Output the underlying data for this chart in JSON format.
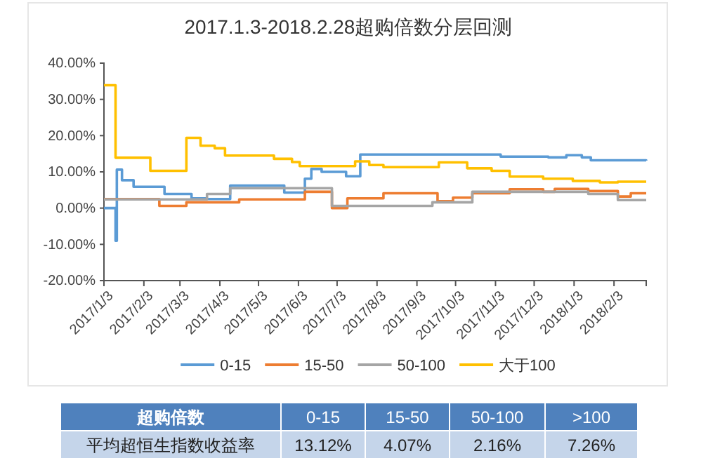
{
  "chart_data": [
    {
      "type": "step",
      "title": "2017.1.3-2018.2.28超购倍数分层回测",
      "xlim": [
        "2017-01-03",
        "2018-02-28"
      ],
      "xticks": [
        {
          "value": "2017-01-03",
          "label": "2017/1/3"
        },
        {
          "value": "2017-02-03",
          "label": "2017/2/3"
        },
        {
          "value": "2017-03-03",
          "label": "2017/3/3"
        },
        {
          "value": "2017-04-03",
          "label": "2017/4/3"
        },
        {
          "value": "2017-05-03",
          "label": "2017/5/3"
        },
        {
          "value": "2017-06-03",
          "label": "2017/6/3"
        },
        {
          "value": "2017-07-03",
          "label": "2017/7/3"
        },
        {
          "value": "2017-08-03",
          "label": "2017/8/3"
        },
        {
          "value": "2017-09-03",
          "label": "2017/9/3"
        },
        {
          "value": "2017-10-03",
          "label": "2017/10/3"
        },
        {
          "value": "2017-11-03",
          "label": "2017/11/3"
        },
        {
          "value": "2017-12-03",
          "label": "2017/12/3"
        },
        {
          "value": "2018-01-03",
          "label": "2018/1/3"
        },
        {
          "value": "2018-02-03",
          "label": "2018/2/3"
        }
      ],
      "ylim": [
        -20,
        40
      ],
      "yticks": [
        {
          "value": -20,
          "label": "-20.00%"
        },
        {
          "value": -10,
          "label": "-10.00%"
        },
        {
          "value": 0,
          "label": "0.00%"
        },
        {
          "value": 10,
          "label": "10.00%"
        },
        {
          "value": 20,
          "label": "20.00%"
        },
        {
          "value": 30,
          "label": "30.00%"
        },
        {
          "value": 40,
          "label": "40.00%"
        }
      ],
      "legend": "bottom",
      "marker": "none",
      "line_style": "solid",
      "series": [
        {
          "name": "0-15",
          "color": "#5b9bd5",
          "x": [
            "2017-01-03",
            "2017-01-12",
            "2017-01-13",
            "2017-01-17",
            "2017-01-26",
            "2017-02-19",
            "2017-03-12",
            "2017-03-24",
            "2017-04-11",
            "2017-05-23",
            "2017-06-08",
            "2017-06-13",
            "2017-06-21",
            "2017-07-10",
            "2017-07-21",
            "2017-11-07",
            "2017-12-14",
            "2017-12-28",
            "2018-01-09",
            "2018-01-16",
            "2018-02-28"
          ],
          "values": [
            0,
            -9,
            10.6,
            7.7,
            5.9,
            3.9,
            2.7,
            2.5,
            6.2,
            4.3,
            8.1,
            10.8,
            10.0,
            8.8,
            14.8,
            14.2,
            14.0,
            14.6,
            14.0,
            13.2,
            13.1
          ]
        },
        {
          "name": "15-50",
          "color": "#ed7d31",
          "x": [
            "2017-01-03",
            "2017-02-15",
            "2017-03-08",
            "2017-04-18",
            "2017-06-08",
            "2017-06-29",
            "2017-07-11",
            "2017-08-08",
            "2017-09-19",
            "2017-10-01",
            "2017-10-16",
            "2017-11-14",
            "2017-12-10",
            "2017-12-19",
            "2018-01-14",
            "2018-02-06",
            "2018-02-16",
            "2018-02-28"
          ],
          "values": [
            2.5,
            0.6,
            1.6,
            2.4,
            4.5,
            0.0,
            2.7,
            4.1,
            1.9,
            2.9,
            4.1,
            5.2,
            4.5,
            5.3,
            4.7,
            3.2,
            4.1,
            4.1
          ]
        },
        {
          "name": "50-100",
          "color": "#a5a5a5",
          "x": [
            "2017-01-03",
            "2017-03-24",
            "2017-04-11",
            "2017-06-29",
            "2017-09-15",
            "2017-10-16",
            "2018-01-14",
            "2018-02-06",
            "2018-02-28"
          ],
          "values": [
            2.4,
            3.9,
            5.5,
            0.6,
            1.6,
            4.5,
            3.9,
            2.2,
            2.2
          ]
        },
        {
          "name": "大于100",
          "color": "#ffc000",
          "x": [
            "2017-01-03",
            "2017-01-12",
            "2017-02-08",
            "2017-03-08",
            "2017-03-19",
            "2017-03-30",
            "2017-04-07",
            "2017-05-15",
            "2017-05-29",
            "2017-06-04",
            "2017-07-17",
            "2017-07-28",
            "2017-08-08",
            "2017-09-20",
            "2017-10-12",
            "2017-10-31",
            "2017-11-14",
            "2017-12-10",
            "2018-01-02",
            "2018-01-23",
            "2018-02-06",
            "2018-02-28"
          ],
          "values": [
            33.9,
            13.9,
            10.3,
            19.4,
            17.2,
            16.5,
            14.5,
            13.6,
            12.7,
            11.6,
            12.9,
            11.9,
            11.3,
            12.6,
            11.0,
            10.3,
            8.7,
            8.1,
            7.5,
            7.1,
            7.3,
            7.3
          ]
        }
      ]
    },
    {
      "type": "other",
      "xlabel": "超购倍数",
      "ylabel": "平均超恒生指数收益率",
      "categories": [
        "0-15",
        "15-50",
        "50-100",
        ">100"
      ],
      "value_labels": [
        "13.12%",
        "4.07%",
        "2.16%",
        "7.26%"
      ]
    }
  ]
}
